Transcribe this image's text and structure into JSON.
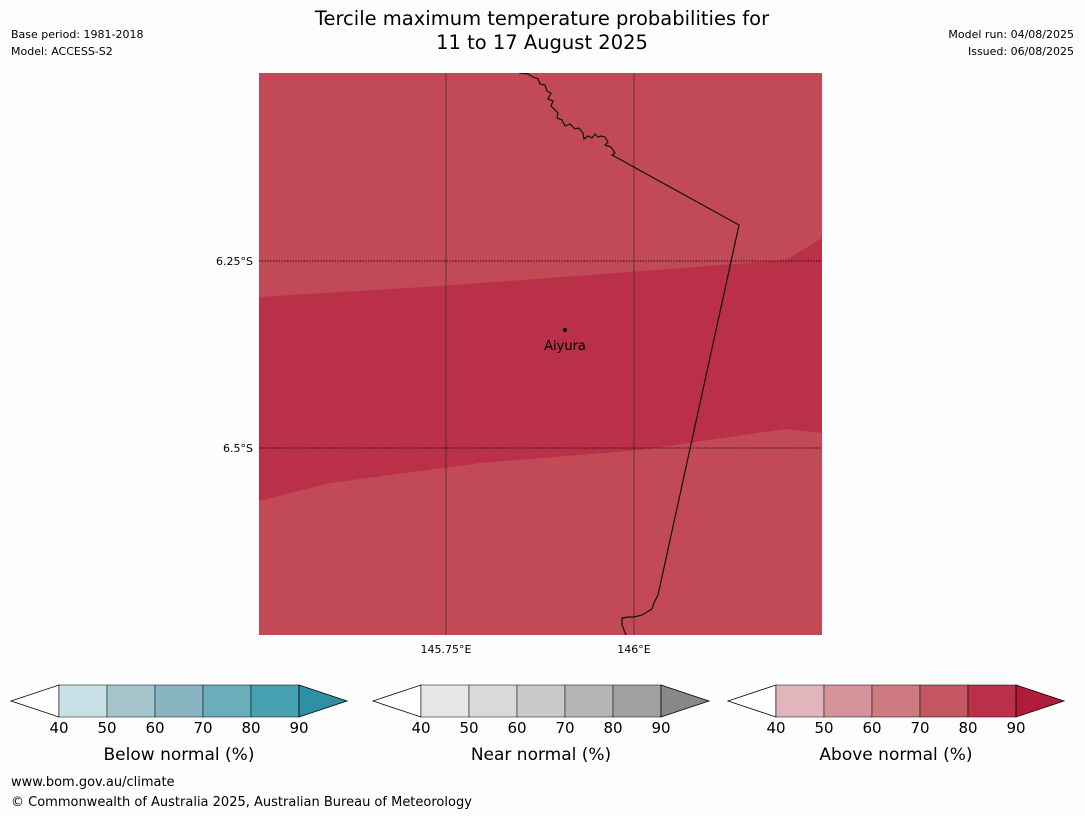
{
  "title_line1": "Tercile maximum temperature probabilities for",
  "title_line2": "11 to 17 August 2025",
  "meta": {
    "base_period": "Base period: 1981-2018",
    "model": "Model: ACCESS-S2",
    "model_run": "Model run: 04/08/2025",
    "issued": "Issued: 06/08/2025"
  },
  "map": {
    "place": "Aiyura",
    "lat_labels": [
      "6.25°S",
      "6.5°S"
    ],
    "lon_labels": [
      "145.75°E",
      "146°E"
    ],
    "colors": {
      "prob_70_80": "#c24a56",
      "prob_80_90": "#ba3049"
    }
  },
  "legends": [
    {
      "label": "Below normal (%)",
      "ticks": [
        "40",
        "50",
        "60",
        "70",
        "80",
        "90"
      ],
      "colors": [
        "#c9e0e6",
        "#a5c5cc",
        "#89b4c1",
        "#6aadbb",
        "#46a0af",
        "#2e90a3"
      ]
    },
    {
      "label": "Near normal (%)",
      "ticks": [
        "40",
        "50",
        "60",
        "70",
        "80",
        "90"
      ],
      "colors": [
        "#e6e6e6",
        "#d9d9d9",
        "#c9c9c9",
        "#b5b5b5",
        "#a0a0a0",
        "#888888"
      ]
    },
    {
      "label": "Above normal (%)",
      "ticks": [
        "40",
        "50",
        "60",
        "70",
        "80",
        "90"
      ],
      "colors": [
        "#e0b5bb",
        "#d5939b",
        "#cd7a81",
        "#c45664",
        "#bb3049",
        "#b01c3a"
      ]
    }
  ],
  "footer": {
    "url": "www.bom.gov.au/climate",
    "copyright": "© Commonwealth of Australia 2025, Australian Bureau of Meteorology"
  }
}
